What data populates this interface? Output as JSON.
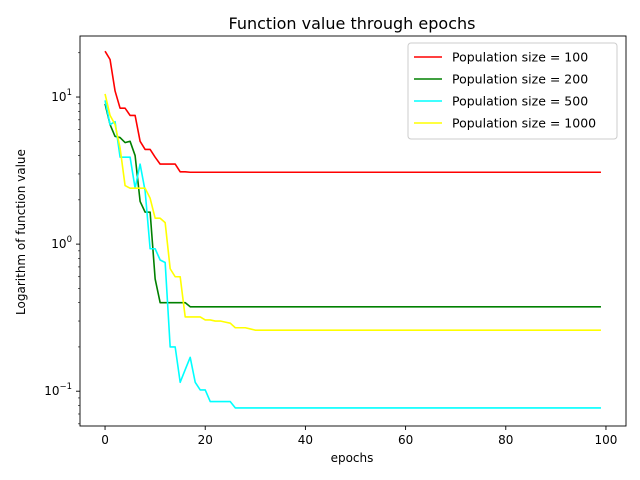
{
  "chart_data": {
    "type": "line",
    "title": "Function value  through epochs",
    "xlabel": "epochs",
    "ylabel": "Logarithm of function value",
    "yscale": "log",
    "xlim": [
      -5,
      104
    ],
    "ylim": [
      0.058,
      26
    ],
    "x_ticks": [
      0,
      20,
      40,
      60,
      80,
      100
    ],
    "y_ticks": [
      {
        "value": 0.1,
        "base": "10",
        "exp": "−1"
      },
      {
        "value": 1,
        "base": "10",
        "exp": "0"
      },
      {
        "value": 10,
        "base": "10",
        "exp": "1"
      }
    ],
    "grid": false,
    "legend_position": "top-right",
    "series": [
      {
        "name": "Population size = 100",
        "color": "#ff0000",
        "points": [
          [
            0,
            20.5
          ],
          [
            1,
            18
          ],
          [
            2,
            11
          ],
          [
            3,
            8.4
          ],
          [
            4,
            8.4
          ],
          [
            5,
            7.5
          ],
          [
            6,
            7.5
          ],
          [
            7,
            5
          ],
          [
            8,
            4.4
          ],
          [
            9,
            4.4
          ],
          [
            10,
            3.9
          ],
          [
            11,
            3.5
          ],
          [
            12,
            3.5
          ],
          [
            13,
            3.5
          ],
          [
            14,
            3.5
          ],
          [
            15,
            3.1
          ],
          [
            16,
            3.1
          ],
          [
            17,
            3.08
          ],
          [
            99,
            3.08
          ]
        ]
      },
      {
        "name": "Population size = 200",
        "color": "#008000",
        "points": [
          [
            0,
            9
          ],
          [
            1,
            6.5
          ],
          [
            2,
            5.4
          ],
          [
            3,
            5.3
          ],
          [
            4,
            4.9
          ],
          [
            5,
            5
          ],
          [
            6,
            4
          ],
          [
            7,
            1.95
          ],
          [
            8,
            1.65
          ],
          [
            9,
            1.65
          ],
          [
            10,
            0.58
          ],
          [
            11,
            0.4
          ],
          [
            12,
            0.4
          ],
          [
            13,
            0.4
          ],
          [
            14,
            0.4
          ],
          [
            15,
            0.4
          ],
          [
            16,
            0.4
          ],
          [
            17,
            0.375
          ],
          [
            99,
            0.375
          ]
        ]
      },
      {
        "name": "Population size = 500",
        "color": "#00ffff",
        "points": [
          [
            0,
            9.5
          ],
          [
            1,
            6.5
          ],
          [
            2,
            6.8
          ],
          [
            3,
            3.9
          ],
          [
            4,
            3.9
          ],
          [
            5,
            3.9
          ],
          [
            6,
            2.4
          ],
          [
            7,
            3.5
          ],
          [
            8,
            2.3
          ],
          [
            9,
            0.93
          ],
          [
            10,
            0.93
          ],
          [
            11,
            0.78
          ],
          [
            12,
            0.75
          ],
          [
            13,
            0.2
          ],
          [
            14,
            0.2
          ],
          [
            15,
            0.115
          ],
          [
            16,
            0.14
          ],
          [
            17,
            0.17
          ],
          [
            18,
            0.115
          ],
          [
            19,
            0.102
          ],
          [
            20,
            0.102
          ],
          [
            21,
            0.085
          ],
          [
            22,
            0.085
          ],
          [
            23,
            0.085
          ],
          [
            24,
            0.085
          ],
          [
            25,
            0.085
          ],
          [
            26,
            0.077
          ],
          [
            99,
            0.077
          ]
        ]
      },
      {
        "name": "Population size = 1000",
        "color": "#ffff00",
        "points": [
          [
            0,
            10.5
          ],
          [
            1,
            7.5
          ],
          [
            2,
            6.5
          ],
          [
            3,
            4.5
          ],
          [
            4,
            2.5
          ],
          [
            5,
            2.4
          ],
          [
            6,
            2.4
          ],
          [
            7,
            2.4
          ],
          [
            8,
            2.4
          ],
          [
            9,
            2.05
          ],
          [
            10,
            1.5
          ],
          [
            11,
            1.5
          ],
          [
            12,
            1.4
          ],
          [
            13,
            0.68
          ],
          [
            14,
            0.6
          ],
          [
            15,
            0.6
          ],
          [
            16,
            0.32
          ],
          [
            17,
            0.32
          ],
          [
            18,
            0.32
          ],
          [
            19,
            0.32
          ],
          [
            20,
            0.305
          ],
          [
            21,
            0.305
          ],
          [
            22,
            0.3
          ],
          [
            23,
            0.3
          ],
          [
            24,
            0.295
          ],
          [
            25,
            0.29
          ],
          [
            26,
            0.27
          ],
          [
            27,
            0.27
          ],
          [
            28,
            0.27
          ],
          [
            29,
            0.265
          ],
          [
            30,
            0.26
          ],
          [
            99,
            0.26
          ]
        ]
      }
    ]
  }
}
